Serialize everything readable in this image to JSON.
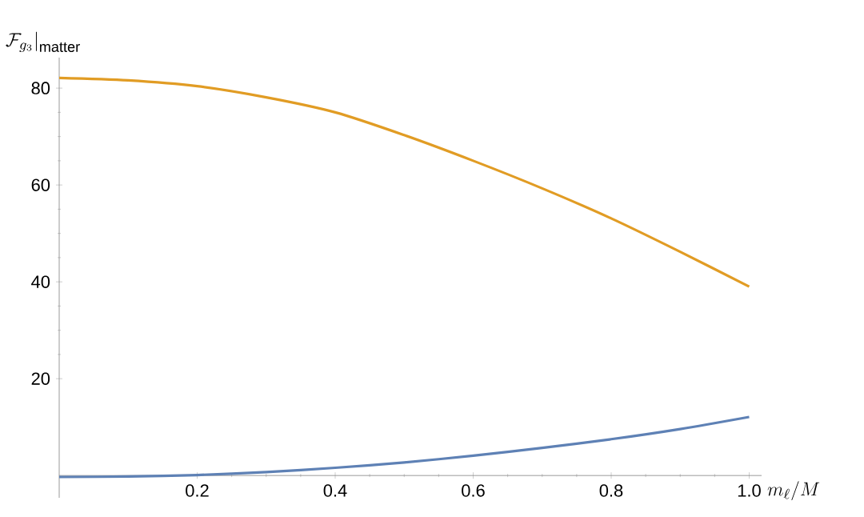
{
  "chart_data": {
    "type": "line",
    "xlabel": "m_\\ell/M",
    "ylabel": "\\mathcal{F}_{g_3}\\big|_{\\mathrm{matter}}",
    "x": [
      0,
      0.1,
      0.2,
      0.3,
      0.4,
      0.5,
      0.6,
      0.7,
      0.8,
      0.9,
      1.0
    ],
    "series": [
      {
        "color": "#5e81b5",
        "values": [
          -0.3,
          -0.2,
          0.1,
          0.7,
          1.6,
          2.7,
          4.1,
          5.7,
          7.5,
          9.6,
          12.1
        ]
      },
      {
        "color": "#e19c24",
        "values": [
          82.1,
          81.6,
          80.4,
          78.1,
          75,
          70.3,
          65,
          59.3,
          53.1,
          46.2,
          39
        ]
      }
    ],
    "xlim": [
      0,
      1.018
    ],
    "ylim": [
      -4.6,
      86.3
    ],
    "xticks": [
      0.2,
      0.4,
      0.6,
      0.8,
      {
        "value": 1,
        "label": "1.0"
      }
    ],
    "yticks": [
      20,
      40,
      60,
      80
    ],
    "grid": false,
    "marker": "none",
    "line_style": "solid"
  }
}
